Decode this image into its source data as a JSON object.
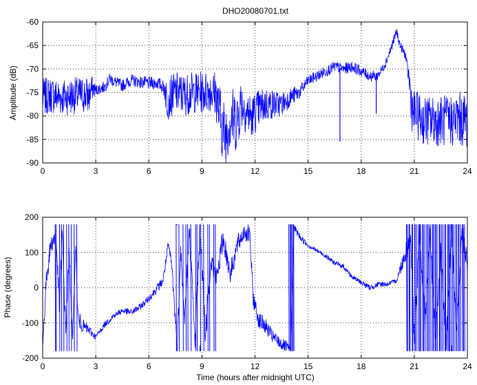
{
  "figure": {
    "background": "#ffffff",
    "line_color": "#0000ff",
    "axis_color": "#000000",
    "grid_style": "dotted"
  },
  "chart_data": [
    {
      "type": "line",
      "title": "DHO20080701.txt",
      "xlabel": "",
      "ylabel": "Amplitude (dB)",
      "xlim": [
        0,
        24
      ],
      "ylim": [
        -90,
        -60
      ],
      "xticks": [
        "0",
        "3",
        "6",
        "9",
        "12",
        "15",
        "18",
        "21",
        "24"
      ],
      "yticks": [
        "-90",
        "-85",
        "-80",
        "-75",
        "-70",
        "-65",
        "-60"
      ],
      "grid": true,
      "noise": [
        [
          0,
          4.0
        ],
        [
          2.6,
          4.0
        ],
        [
          3.0,
          1.2
        ],
        [
          6.8,
          1.4
        ],
        [
          7.0,
          4.5
        ],
        [
          8.6,
          4.5
        ],
        [
          9.6,
          4.5
        ],
        [
          10.1,
          7.0
        ],
        [
          11.0,
          7.0
        ],
        [
          11.3,
          5.0
        ],
        [
          12.0,
          4.5
        ],
        [
          14.0,
          2.0
        ],
        [
          15.0,
          1.2
        ],
        [
          18.8,
          1.2
        ],
        [
          19.2,
          1.0
        ],
        [
          20.6,
          1.0
        ],
        [
          20.8,
          5.0
        ],
        [
          24.0,
          6.0
        ]
      ],
      "series": [
        {
          "values": [
            [
              0,
              -76
            ],
            [
              0.5,
              -75.5
            ],
            [
              1.0,
              -76
            ],
            [
              1.5,
              -75.8
            ],
            [
              2.0,
              -75.6
            ],
            [
              2.5,
              -75.5
            ],
            [
              2.6,
              -76
            ],
            [
              2.8,
              -74.0
            ],
            [
              3.0,
              -74.5
            ],
            [
              3.5,
              -73.8
            ],
            [
              3.8,
              -72.0
            ],
            [
              4.0,
              -72.6
            ],
            [
              4.5,
              -73.5
            ],
            [
              5.0,
              -72.4
            ],
            [
              5.5,
              -72.8
            ],
            [
              6.0,
              -73.0
            ],
            [
              6.5,
              -73.0
            ],
            [
              6.9,
              -74.0
            ],
            [
              7.0,
              -76.5
            ],
            [
              7.5,
              -75.0
            ],
            [
              8.0,
              -75.5
            ],
            [
              8.5,
              -75.0
            ],
            [
              9.0,
              -75.0
            ],
            [
              9.5,
              -74.5
            ],
            [
              9.8,
              -75.5
            ],
            [
              10.1,
              -81.5
            ],
            [
              10.3,
              -84.0
            ],
            [
              10.6,
              -80.5
            ],
            [
              11.0,
              -81.0
            ],
            [
              11.2,
              -77.0
            ],
            [
              11.5,
              -79.0
            ],
            [
              11.8,
              -80.0
            ],
            [
              12.2,
              -78.5
            ],
            [
              12.6,
              -77.5
            ],
            [
              13.0,
              -77.5
            ],
            [
              13.5,
              -77.5
            ],
            [
              14.0,
              -76.0
            ],
            [
              14.5,
              -75.0
            ],
            [
              15.0,
              -72.5
            ],
            [
              15.5,
              -71.5
            ],
            [
              16.0,
              -70.5
            ],
            [
              16.5,
              -69.5
            ],
            [
              17.0,
              -70.0
            ],
            [
              17.5,
              -69.5
            ],
            [
              18.0,
              -70.5
            ],
            [
              18.5,
              -71.5
            ],
            [
              18.9,
              -71.5
            ],
            [
              19.2,
              -70.0
            ],
            [
              19.4,
              -68.5
            ],
            [
              19.7,
              -65.5
            ],
            [
              20.0,
              -62.0
            ],
            [
              20.2,
              -65.0
            ],
            [
              20.5,
              -67.0
            ],
            [
              20.7,
              -72.0
            ],
            [
              20.9,
              -79.0
            ],
            [
              21.5,
              -81.0
            ],
            [
              22.0,
              -81.0
            ],
            [
              22.5,
              -81.0
            ],
            [
              23.0,
              -81.0
            ],
            [
              23.5,
              -80.5
            ],
            [
              24.0,
              -81.0
            ]
          ],
          "spikes": [
            [
              16.8,
              -85.5
            ],
            [
              18.85,
              -79.5
            ],
            [
              10.35,
              -89.0
            ],
            [
              11.8,
              -84.0
            ]
          ]
        }
      ]
    },
    {
      "type": "line",
      "title": "",
      "xlabel": "Time (hours after midnight UTC)",
      "ylabel": "Phase (degrees)",
      "xlim": [
        0,
        24
      ],
      "ylim": [
        -200,
        200
      ],
      "xticks": [
        "0",
        "3",
        "6",
        "9",
        "12",
        "15",
        "18",
        "21",
        "24"
      ],
      "yticks": [
        "-200",
        "-100",
        "0",
        "100",
        "200"
      ],
      "grid": true,
      "wrap": [
        -180,
        180
      ],
      "noise": [
        [
          0,
          25
        ],
        [
          1.2,
          30
        ],
        [
          2.0,
          25
        ],
        [
          3.0,
          8
        ],
        [
          6.0,
          10
        ],
        [
          7.0,
          15
        ],
        [
          7.6,
          30
        ],
        [
          9.0,
          40
        ],
        [
          12.0,
          25
        ],
        [
          14.0,
          15
        ],
        [
          15.0,
          6
        ],
        [
          18.5,
          8
        ],
        [
          20.0,
          6
        ],
        [
          20.5,
          30
        ],
        [
          24.0,
          40
        ]
      ],
      "series": [
        {
          "values": [
            [
              0,
              -170
            ],
            [
              0.2,
              20
            ],
            [
              0.45,
              120
            ],
            [
              0.75,
              150
            ],
            [
              0.95,
              -60
            ],
            [
              1.1,
              160
            ],
            [
              1.3,
              -120
            ],
            [
              1.5,
              100
            ],
            [
              1.7,
              -160
            ],
            [
              1.85,
              130
            ],
            [
              2.0,
              -90
            ],
            [
              2.3,
              -110
            ],
            [
              2.6,
              -120
            ],
            [
              3.0,
              -140
            ],
            [
              3.5,
              -105
            ],
            [
              4.0,
              -80
            ],
            [
              4.5,
              -65
            ],
            [
              5.0,
              -70
            ],
            [
              5.5,
              -55
            ],
            [
              6.0,
              -30
            ],
            [
              6.5,
              0
            ],
            [
              6.8,
              20
            ],
            [
              7.1,
              120
            ],
            [
              7.3,
              60
            ],
            [
              7.6,
              -170
            ],
            [
              7.8,
              120
            ],
            [
              8.0,
              -100
            ],
            [
              8.3,
              160
            ],
            [
              8.6,
              -150
            ],
            [
              8.9,
              170
            ],
            [
              9.2,
              -140
            ],
            [
              9.5,
              90
            ],
            [
              9.8,
              20
            ],
            [
              10.2,
              140
            ],
            [
              10.6,
              40
            ],
            [
              11.0,
              120
            ],
            [
              11.4,
              160
            ],
            [
              11.7,
              150
            ],
            [
              11.9,
              -30
            ],
            [
              12.2,
              -90
            ],
            [
              12.6,
              -110
            ],
            [
              13.0,
              -140
            ],
            [
              13.5,
              -160
            ],
            [
              14.0,
              -175
            ],
            [
              14.2,
              170
            ],
            [
              14.6,
              140
            ],
            [
              15.0,
              120
            ],
            [
              15.5,
              105
            ],
            [
              16.0,
              90
            ],
            [
              16.5,
              70
            ],
            [
              17.0,
              60
            ],
            [
              17.5,
              30
            ],
            [
              18.0,
              15
            ],
            [
              18.5,
              0
            ],
            [
              19.0,
              10
            ],
            [
              19.5,
              10
            ],
            [
              20.0,
              20
            ],
            [
              20.5,
              100
            ],
            [
              20.8,
              140
            ],
            [
              21.0,
              -150
            ],
            [
              21.3,
              160
            ],
            [
              21.6,
              -100
            ],
            [
              21.9,
              150
            ],
            [
              22.2,
              -160
            ],
            [
              22.5,
              100
            ],
            [
              22.8,
              -170
            ],
            [
              23.1,
              170
            ],
            [
              23.4,
              -120
            ],
            [
              23.7,
              160
            ],
            [
              24.0,
              60
            ]
          ],
          "wrap_bands": [
            [
              0.6,
              2.0,
              10,
              1.0
            ],
            [
              7.5,
              9.9,
              14,
              1.0
            ],
            [
              13.9,
              14.2,
              6,
              1.0
            ],
            [
              20.5,
              23.9,
              44,
              1.0
            ]
          ]
        }
      ]
    }
  ]
}
